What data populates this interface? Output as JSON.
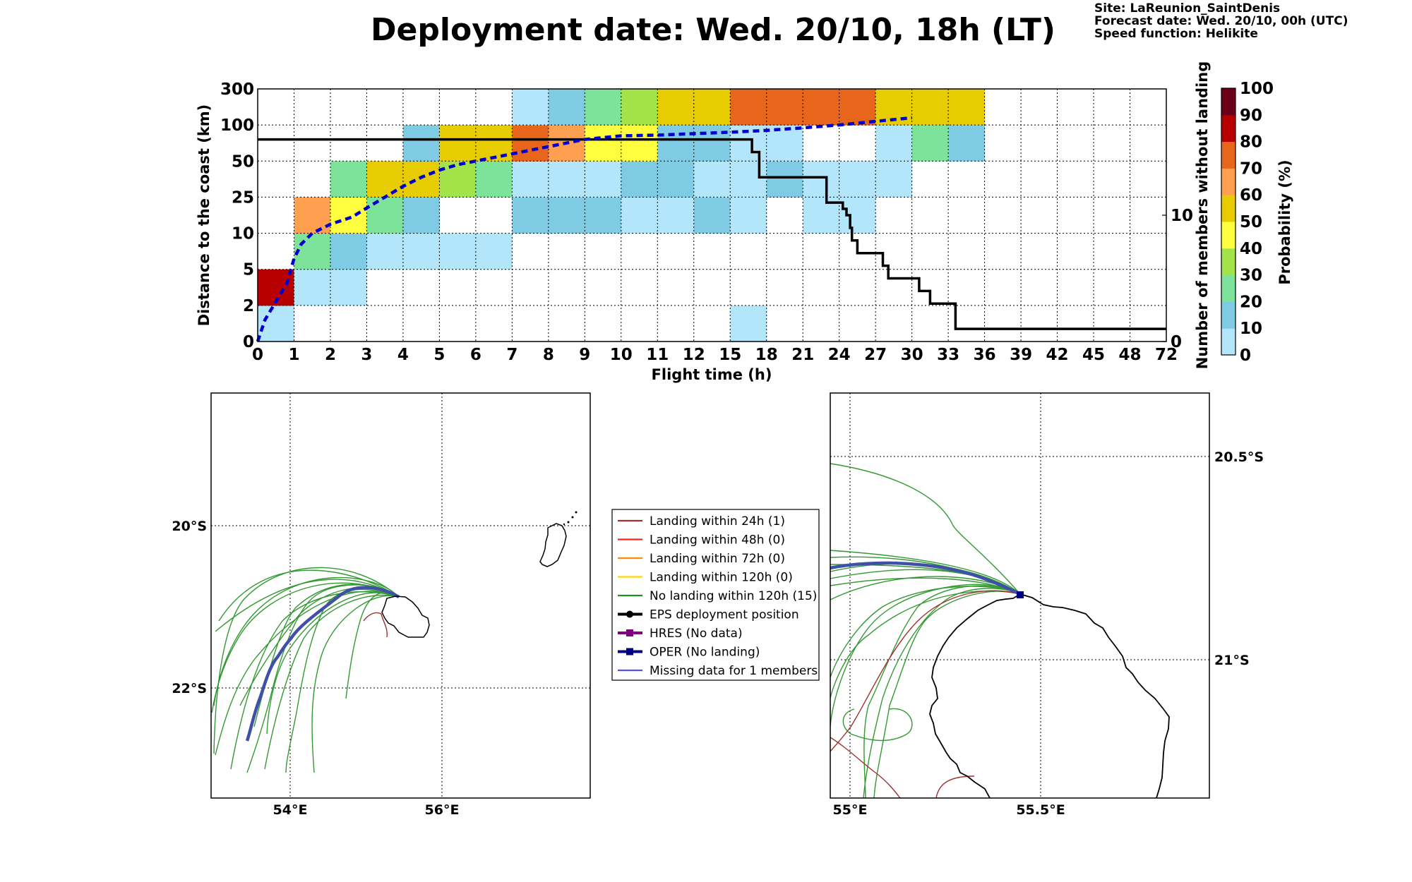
{
  "title": "Deployment date: Wed. 20/10, 18h (LT)",
  "info": {
    "site": "Site: LaReunion_SaintDenis",
    "forecast": "Forecast date: Wed. 20/10, 00h (UTC)",
    "speed": "Speed function: Helikite"
  },
  "colors": {
    "bins": [
      "#b3e5fb",
      "#7ecbe3",
      "#7ee39a",
      "#a2e34a",
      "#ffff40",
      "#e6cc00",
      "#ffa050",
      "#e8661c",
      "#b80000",
      "#6b0018"
    ],
    "probability_line": "#0000cc",
    "count_line": "#000000",
    "green_traj": "#339933",
    "red_traj": "#a03030",
    "oper": "#4050a8",
    "hres": "#800080",
    "missing": "#4e55e8"
  },
  "chart_data": [
    {
      "type": "heatmap",
      "xlabel": "Flight time (h)",
      "ylabel": "Distance to the coast (km)",
      "y2label": "Number of members without landing",
      "x_ticks": [
        "0",
        "1",
        "2",
        "3",
        "4",
        "5",
        "6",
        "7",
        "8",
        "9",
        "10",
        "11",
        "12",
        "15",
        "18",
        "21",
        "24",
        "27",
        "30",
        "33",
        "36",
        "39",
        "42",
        "45",
        "48",
        "72"
      ],
      "y_ticks": [
        "0",
        "2",
        "5",
        "10",
        "25",
        "50",
        "100",
        "300"
      ],
      "y2_ticks": [
        "0",
        "10"
      ],
      "y2lim": [
        0,
        20
      ],
      "colorbar": {
        "label": "Probability (%)",
        "ticks": [
          "0",
          "10",
          "20",
          "30",
          "40",
          "50",
          "60",
          "70",
          "80",
          "90",
          "100"
        ]
      },
      "cells_note": "each cell: [x_bin_index, distance_bin_index, color_bin_index]",
      "cells": [
        [
          0,
          0,
          0
        ],
        [
          0,
          1,
          8
        ],
        [
          1,
          1,
          0
        ],
        [
          1,
          2,
          2
        ],
        [
          1,
          3,
          6
        ],
        [
          2,
          1,
          0
        ],
        [
          2,
          2,
          1
        ],
        [
          2,
          3,
          4
        ],
        [
          2,
          4,
          2
        ],
        [
          3,
          2,
          0
        ],
        [
          3,
          3,
          2
        ],
        [
          3,
          4,
          5
        ],
        [
          4,
          2,
          0
        ],
        [
          4,
          3,
          1
        ],
        [
          4,
          4,
          5
        ],
        [
          4,
          5,
          1
        ],
        [
          5,
          2,
          0
        ],
        [
          5,
          4,
          3
        ],
        [
          5,
          5,
          5
        ],
        [
          6,
          2,
          0
        ],
        [
          6,
          4,
          2
        ],
        [
          6,
          5,
          5
        ],
        [
          7,
          3,
          1
        ],
        [
          7,
          4,
          0
        ],
        [
          7,
          5,
          7
        ],
        [
          7,
          6,
          0
        ],
        [
          8,
          3,
          1
        ],
        [
          8,
          4,
          0
        ],
        [
          8,
          5,
          6
        ],
        [
          8,
          6,
          1
        ],
        [
          9,
          3,
          1
        ],
        [
          9,
          4,
          0
        ],
        [
          9,
          5,
          4
        ],
        [
          9,
          6,
          2
        ],
        [
          10,
          3,
          0
        ],
        [
          10,
          4,
          1
        ],
        [
          10,
          5,
          4
        ],
        [
          10,
          6,
          3
        ],
        [
          11,
          3,
          0
        ],
        [
          11,
          4,
          1
        ],
        [
          11,
          5,
          1
        ],
        [
          11,
          6,
          5
        ],
        [
          12,
          3,
          1
        ],
        [
          12,
          4,
          0
        ],
        [
          12,
          5,
          1
        ],
        [
          12,
          6,
          5
        ],
        [
          13,
          0,
          0
        ],
        [
          13,
          3,
          0
        ],
        [
          13,
          4,
          0
        ],
        [
          13,
          5,
          0
        ],
        [
          13,
          6,
          7
        ],
        [
          14,
          4,
          1
        ],
        [
          14,
          5,
          0
        ],
        [
          14,
          6,
          7
        ],
        [
          15,
          3,
          0
        ],
        [
          15,
          4,
          0
        ],
        [
          15,
          6,
          7
        ],
        [
          16,
          3,
          0
        ],
        [
          16,
          4,
          0
        ],
        [
          16,
          6,
          7
        ],
        [
          17,
          4,
          0
        ],
        [
          17,
          5,
          0
        ],
        [
          17,
          6,
          5
        ],
        [
          18,
          5,
          2
        ],
        [
          18,
          6,
          5
        ],
        [
          19,
          5,
          1
        ],
        [
          19,
          6,
          5
        ]
      ],
      "median_distance_line": {
        "label": "probability line",
        "x_positions": [
          0,
          0.2,
          0.5,
          0.8,
          1.0,
          1.2,
          1.5,
          1.8,
          2.0,
          2.3,
          2.6,
          3.0,
          3.5,
          4.0,
          4.5,
          5.0,
          5.5,
          6.0,
          6.5,
          7.0,
          7.5,
          8.0,
          8.5,
          9.0,
          9.5,
          10.0,
          11,
          12,
          13,
          14,
          15,
          16,
          17,
          18
        ],
        "y_positions": [
          0,
          0.6,
          1.1,
          1.6,
          2.3,
          2.7,
          3.0,
          3.15,
          3.25,
          3.35,
          3.45,
          3.7,
          4.0,
          4.3,
          4.55,
          4.75,
          4.9,
          5.0,
          5.1,
          5.2,
          5.3,
          5.4,
          5.5,
          5.6,
          5.65,
          5.7,
          5.72,
          5.76,
          5.8,
          5.85,
          5.92,
          6.0,
          6.1,
          6.2
        ],
        "dashed": true
      },
      "members_without_landing": {
        "x_positions": [
          0,
          13.6,
          13.6,
          13.8,
          13.8,
          15.65,
          15.65,
          16.1,
          16.1,
          16.2,
          16.2,
          16.3,
          16.3,
          16.35,
          16.35,
          16.5,
          16.5,
          16.5,
          17.2,
          17.2,
          17.35,
          17.35,
          18.2,
          18.2,
          18.5,
          18.5,
          19.2,
          19.2,
          25
        ],
        "values": [
          16,
          16,
          15,
          15,
          13,
          13,
          11,
          11,
          10.5,
          10.5,
          10,
          10,
          9,
          9,
          8,
          8,
          7,
          7,
          7,
          6,
          6,
          5,
          5,
          4,
          4,
          3,
          3,
          1,
          1
        ]
      }
    }
  ],
  "map_left": {
    "lat_labels": [
      "20°S",
      "22°S"
    ],
    "lon_labels": [
      "54°E",
      "56°E"
    ]
  },
  "map_right": {
    "lat_labels": [
      "20.5°S",
      "21°S"
    ],
    "lon_labels": [
      "55°E",
      "55.5°E"
    ]
  },
  "legend": {
    "items": [
      {
        "label": "Landing within 24h (1)",
        "color": "#a03030",
        "marker": "none"
      },
      {
        "label": "Landing within 48h (0)",
        "color": "#ff2020",
        "marker": "none"
      },
      {
        "label": "Landing within 72h (0)",
        "color": "#ff8c00",
        "marker": "none"
      },
      {
        "label": "Landing within 120h (0)",
        "color": "#ffd700",
        "marker": "none"
      },
      {
        "label": "No landing within 120h (15)",
        "color": "#228b22",
        "marker": "none"
      },
      {
        "label": "EPS deployment position",
        "color": "#000000",
        "marker": "circle"
      },
      {
        "label": "HRES (No data)",
        "color": "#800080",
        "marker": "square"
      },
      {
        "label": "OPER (No landing)",
        "color": "#000080",
        "marker": "square"
      },
      {
        "label": "Missing data for 1 members",
        "color": "#4e55e8",
        "marker": "none"
      }
    ]
  }
}
